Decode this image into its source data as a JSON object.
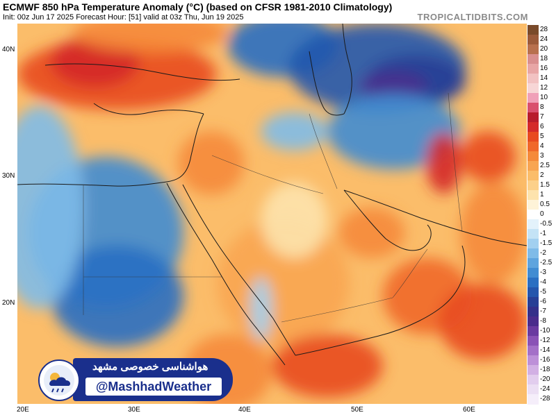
{
  "header": {
    "title": "ECMWF 850 hPa Temperature Anomaly (°C) (based on CFSR 1981-2010 Climatology)",
    "subtitle": "Init: 00z Jun 17 2025   Forecast Hour: [51]   valid at 03z Thu, Jun 19 2025",
    "brand": "TROPICALTIDBITS.COM"
  },
  "axes": {
    "lat_labels": [
      {
        "text": "40N",
        "value": 40
      },
      {
        "text": "30N",
        "value": 30
      },
      {
        "text": "20N",
        "value": 20
      }
    ],
    "lon_labels": [
      {
        "text": "20E",
        "value": 20
      },
      {
        "text": "30E",
        "value": 30
      },
      {
        "text": "40E",
        "value": 40
      },
      {
        "text": "50E",
        "value": 50
      },
      {
        "text": "60E",
        "value": 60
      }
    ],
    "lon_range": [
      20,
      66
    ],
    "lat_range": [
      12.5,
      42.5
    ]
  },
  "colorbar": {
    "levels": [
      {
        "label": "28",
        "color": "#7a4a2a"
      },
      {
        "label": "24",
        "color": "#9b5a3a"
      },
      {
        "label": "20",
        "color": "#b8704e"
      },
      {
        "label": "18",
        "color": "#d98f8f"
      },
      {
        "label": "16",
        "color": "#e8a6a6"
      },
      {
        "label": "14",
        "color": "#f2c2c2"
      },
      {
        "label": "12",
        "color": "#f7d6d6"
      },
      {
        "label": "10",
        "color": "#f0a0b8"
      },
      {
        "label": "8",
        "color": "#d9506e"
      },
      {
        "label": "7",
        "color": "#b81c2c"
      },
      {
        "label": "6",
        "color": "#d42a2a"
      },
      {
        "label": "5",
        "color": "#e84a20"
      },
      {
        "label": "4",
        "color": "#f0682a"
      },
      {
        "label": "3",
        "color": "#f58a3a"
      },
      {
        "label": "2.5",
        "color": "#f8a552"
      },
      {
        "label": "2",
        "color": "#fbbd6a"
      },
      {
        "label": "1.5",
        "color": "#fcd08a"
      },
      {
        "label": "1",
        "color": "#fde3ad"
      },
      {
        "label": "0.5",
        "color": "#fef3d8"
      },
      {
        "label": "0",
        "color": "#ffffff"
      },
      {
        "label": "-0.5",
        "color": "#e3f2fb"
      },
      {
        "label": "-1",
        "color": "#c4e3f6"
      },
      {
        "label": "-1.5",
        "color": "#a2d0f0"
      },
      {
        "label": "-2",
        "color": "#7fbbe8"
      },
      {
        "label": "-2.5",
        "color": "#5ea4de"
      },
      {
        "label": "-3",
        "color": "#418cd2"
      },
      {
        "label": "-4",
        "color": "#2a6fc2"
      },
      {
        "label": "-5",
        "color": "#2456ad"
      },
      {
        "label": "-6",
        "color": "#273f96"
      },
      {
        "label": "-7",
        "color": "#34308a"
      },
      {
        "label": "-8",
        "color": "#4a2c8c"
      },
      {
        "label": "-10",
        "color": "#6a3aa0"
      },
      {
        "label": "-12",
        "color": "#8a52b6"
      },
      {
        "label": "-14",
        "color": "#a470c8"
      },
      {
        "label": "-16",
        "color": "#bd90d8"
      },
      {
        "label": "-18",
        "color": "#d2b0e4"
      },
      {
        "label": "-20",
        "color": "#e2cdee"
      },
      {
        "label": "-24",
        "color": "#ecdff4"
      },
      {
        "label": "-28",
        "color": "#f5eefa"
      }
    ]
  },
  "anomaly_regions": [
    {
      "name": "turkey-warm",
      "color": "#e84a20",
      "lon": 29,
      "lat": 38.5,
      "rx": 9,
      "ry": 2.8
    },
    {
      "name": "aegean-hot",
      "color": "#d42a2a",
      "lon": 27,
      "lat": 39.5,
      "rx": 4,
      "ry": 2
    },
    {
      "name": "black-sea-warm",
      "color": "#f58a3a",
      "lon": 32,
      "lat": 41.8,
      "rx": 7,
      "ry": 1.6
    },
    {
      "name": "caucasus-cold",
      "color": "#2a6fc2",
      "lon": 44,
      "lat": 40.8,
      "rx": 5,
      "ry": 2.5
    },
    {
      "name": "caspian-cold",
      "color": "#2456ad",
      "lon": 52.5,
      "lat": 39,
      "rx": 8,
      "ry": 3.5
    },
    {
      "name": "central-asia-cold",
      "color": "#273f96",
      "lon": 56,
      "lat": 38,
      "rx": 4.5,
      "ry": 2
    },
    {
      "name": "purple-core",
      "color": "#4a2c8c",
      "lon": 54,
      "lat": 37.5,
      "rx": 3,
      "ry": 1.2
    },
    {
      "name": "iran-cold",
      "color": "#418cd2",
      "lon": 54,
      "lat": 34,
      "rx": 6,
      "ry": 3
    },
    {
      "name": "iraq-cold",
      "color": "#7fbbe8",
      "lon": 45,
      "lat": 34,
      "rx": 3,
      "ry": 1.5
    },
    {
      "name": "iran-hot",
      "color": "#d42a2a",
      "lon": 58.5,
      "lat": 31.5,
      "rx": 1.6,
      "ry": 2.4
    },
    {
      "name": "east-iran-hot",
      "color": "#e84a20",
      "lon": 62.5,
      "lat": 32,
      "rx": 2.5,
      "ry": 2
    },
    {
      "name": "levant-warm",
      "color": "#f58a3a",
      "lon": 37.5,
      "lat": 31.5,
      "rx": 3,
      "ry": 2.5
    },
    {
      "name": "egypt-cold",
      "color": "#418cd2",
      "lon": 28,
      "lat": 26,
      "rx": 7,
      "ry": 6
    },
    {
      "name": "sudan-cold",
      "color": "#2a6fc2",
      "lon": 29,
      "lat": 21,
      "rx": 6,
      "ry": 4
    },
    {
      "name": "libya-cool",
      "color": "#7fbbe8",
      "lon": 22,
      "lat": 28,
      "rx": 4,
      "ry": 8
    },
    {
      "name": "arabia-warm",
      "color": "#f8a552",
      "lon": 44,
      "lat": 22,
      "rx": 6,
      "ry": 5
    },
    {
      "name": "arabia-center",
      "color": "#fde3ad",
      "lon": 45,
      "lat": 27,
      "rx": 3,
      "ry": 3
    },
    {
      "name": "yemen-hot",
      "color": "#e84a20",
      "lon": 48,
      "lat": 15.5,
      "rx": 5,
      "ry": 2.5
    },
    {
      "name": "oman-warm",
      "color": "#f0682a",
      "lon": 57,
      "lat": 21,
      "rx": 4,
      "ry": 3
    },
    {
      "name": "arabian-sea-hot",
      "color": "#e84a20",
      "lon": 62,
      "lat": 19,
      "rx": 4,
      "ry": 3
    },
    {
      "name": "pakistan-warm",
      "color": "#f58a3a",
      "lon": 63,
      "lat": 26,
      "rx": 3,
      "ry": 4
    },
    {
      "name": "gulf-warm",
      "color": "#f58a3a",
      "lon": 52,
      "lat": 26,
      "rx": 3,
      "ry": 2
    },
    {
      "name": "redsea-cool",
      "color": "#a2d0f0",
      "lon": 42,
      "lat": 20,
      "rx": 1,
      "ry": 2.5
    },
    {
      "name": "horn-warm",
      "color": "#f58a3a",
      "lon": 39,
      "lat": 15,
      "rx": 4,
      "ry": 3
    }
  ],
  "watermark": {
    "persian_text": "هواشناسی خصوصی مشهد",
    "handle": "@MashhadWeather"
  }
}
